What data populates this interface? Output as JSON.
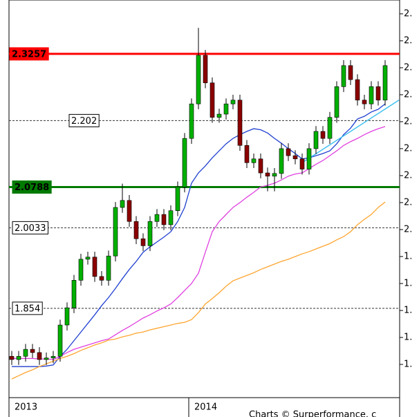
{
  "chart_data": {
    "type": "candlestick",
    "categories": [
      "2013",
      null,
      null,
      null,
      null,
      null,
      null,
      null,
      null,
      null,
      null,
      null,
      null,
      null,
      null,
      null,
      null,
      null,
      null,
      null,
      null,
      null,
      null,
      null,
      null,
      null,
      "2014",
      null,
      null,
      null,
      null,
      null,
      null,
      null,
      null,
      null,
      null,
      null,
      null,
      null,
      null,
      null,
      null,
      null,
      null,
      null,
      null,
      null,
      null,
      null,
      null,
      null,
      null,
      null,
      null
    ],
    "open": [
      1.765,
      1.759,
      1.765,
      1.778,
      1.772,
      1.759,
      1.762,
      1.765,
      1.823,
      1.855,
      1.906,
      1.945,
      1.949,
      1.913,
      1.906,
      1.951,
      2.041,
      2.054,
      2.015,
      1.983,
      1.97,
      2.015,
      2.028,
      2.009,
      2.035,
      2.079,
      2.169,
      2.233,
      2.323,
      2.272,
      2.208,
      2.214,
      2.233,
      2.24,
      2.156,
      2.124,
      2.131,
      2.105,
      2.099,
      2.104,
      2.15,
      2.137,
      2.131,
      2.112,
      2.15,
      2.182,
      2.169,
      2.208,
      2.265,
      2.304,
      2.278,
      2.24,
      2.233,
      2.265,
      2.24
    ],
    "high": [
      1.775,
      1.775,
      1.788,
      1.788,
      1.782,
      1.772,
      1.775,
      1.833,
      1.865,
      1.916,
      1.955,
      1.959,
      1.959,
      1.923,
      1.961,
      2.051,
      2.085,
      2.064,
      2.025,
      1.993,
      2.025,
      2.038,
      2.038,
      2.045,
      2.089,
      2.179,
      2.243,
      2.374,
      2.333,
      2.282,
      2.224,
      2.243,
      2.25,
      2.25,
      2.166,
      2.141,
      2.141,
      2.115,
      2.114,
      2.16,
      2.16,
      2.147,
      2.141,
      2.16,
      2.192,
      2.192,
      2.218,
      2.275,
      2.314,
      2.314,
      2.288,
      2.25,
      2.275,
      2.275,
      2.314
    ],
    "low": [
      1.749,
      1.749,
      1.755,
      1.762,
      1.749,
      1.749,
      1.752,
      1.755,
      1.813,
      1.845,
      1.896,
      1.935,
      1.903,
      1.896,
      1.896,
      1.941,
      2.031,
      2.005,
      1.973,
      1.96,
      1.96,
      2.005,
      1.999,
      1.999,
      2.025,
      2.069,
      2.159,
      2.223,
      2.262,
      2.198,
      2.198,
      2.204,
      2.223,
      2.146,
      2.114,
      2.114,
      2.095,
      2.071,
      2.071,
      2.094,
      2.127,
      2.121,
      2.102,
      2.102,
      2.14,
      2.159,
      2.159,
      2.198,
      2.255,
      2.268,
      2.23,
      2.223,
      2.223,
      2.23,
      2.23
    ],
    "close": [
      1.759,
      1.765,
      1.778,
      1.772,
      1.759,
      1.762,
      1.765,
      1.823,
      1.855,
      1.906,
      1.945,
      1.949,
      1.913,
      1.906,
      1.951,
      2.041,
      2.054,
      2.015,
      1.983,
      1.97,
      2.015,
      2.028,
      2.009,
      2.035,
      2.079,
      2.169,
      2.233,
      2.323,
      2.272,
      2.208,
      2.214,
      2.233,
      2.24,
      2.156,
      2.124,
      2.131,
      2.105,
      2.099,
      2.104,
      2.15,
      2.137,
      2.131,
      2.112,
      2.15,
      2.182,
      2.169,
      2.208,
      2.265,
      2.304,
      2.278,
      2.24,
      2.233,
      2.265,
      2.24,
      2.304
    ],
    "up_color": "#00b000",
    "down_color": "#8b0000",
    "moving_averages": [
      {
        "color": "#1f3fd0",
        "values": [
          1.746,
          1.746,
          1.746,
          1.746,
          1.746,
          1.747,
          1.749,
          1.765,
          1.778,
          1.794,
          1.81,
          1.826,
          1.842,
          1.859,
          1.874,
          1.891,
          1.909,
          1.926,
          1.941,
          1.958,
          1.968,
          1.977,
          1.986,
          1.996,
          2.015,
          2.041,
          2.086,
          2.105,
          2.118,
          2.133,
          2.146,
          2.159,
          2.169,
          2.176,
          2.182,
          2.187,
          2.185,
          2.179,
          2.169,
          2.16,
          2.15,
          2.141,
          2.131,
          2.133,
          2.137,
          2.141,
          2.146,
          2.159,
          2.176,
          2.188,
          2.205,
          2.21,
          2.218,
          2.223,
          2.233
        ]
      },
      {
        "color": "#e040e0",
        "values": [
          1.761,
          1.761,
          1.761,
          1.761,
          1.76,
          1.76,
          1.759,
          1.765,
          1.772,
          1.778,
          1.782,
          1.786,
          1.79,
          1.794,
          1.797,
          1.805,
          1.813,
          1.82,
          1.828,
          1.836,
          1.842,
          1.849,
          1.855,
          1.862,
          1.874,
          1.887,
          1.9,
          1.919,
          1.958,
          1.996,
          2.015,
          2.028,
          2.041,
          2.05,
          2.06,
          2.069,
          2.079,
          2.082,
          2.086,
          2.092,
          2.099,
          2.103,
          2.105,
          2.113,
          2.121,
          2.128,
          2.137,
          2.146,
          2.156,
          2.163,
          2.169,
          2.176,
          2.182,
          2.187,
          2.191
        ]
      },
      {
        "color": "#ffa530",
        "values": [
          1.723,
          1.729,
          1.735,
          1.74,
          1.746,
          1.751,
          1.756,
          1.761,
          1.765,
          1.77,
          1.776,
          1.781,
          1.786,
          1.79,
          1.795,
          1.797,
          1.801,
          1.804,
          1.808,
          1.81,
          1.814,
          1.817,
          1.82,
          1.823,
          1.826,
          1.828,
          1.833,
          1.846,
          1.862,
          1.872,
          1.883,
          1.895,
          1.905,
          1.91,
          1.915,
          1.92,
          1.926,
          1.931,
          1.936,
          1.941,
          1.945,
          1.95,
          1.955,
          1.959,
          1.964,
          1.969,
          1.974,
          1.981,
          1.987,
          1.996,
          2.009,
          2.019,
          2.028,
          2.041,
          2.051
        ]
      }
    ],
    "trendline": {
      "color": "#40c0f0",
      "x": [
        42,
        56
      ],
      "values": [
        2.124,
        2.24
      ]
    },
    "levels": [
      {
        "value": 2.3257,
        "color": "#ff0000",
        "style": "solid",
        "label_style": "filled"
      },
      {
        "value": 2.202,
        "color": "#333333",
        "style": "dashed",
        "label_style": "boxed"
      },
      {
        "value": 2.0788,
        "color": "#007a00",
        "style": "solid",
        "label_style": "filled"
      },
      {
        "value": 2.0033,
        "color": "#333333",
        "style": "dashed",
        "label_style": "boxed"
      },
      {
        "value": 1.854,
        "color": "#333333",
        "style": "dashed",
        "label_style": "boxed"
      }
    ],
    "ylim": [
      1.6884,
      2.4256
    ],
    "yticks": [
      {
        "value": 2.4,
        "label": "2."
      },
      {
        "value": 2.35,
        "label": "2."
      },
      {
        "value": 2.3,
        "label": "2."
      },
      {
        "value": 2.25,
        "label": "2."
      },
      {
        "value": 2.2,
        "label": "2."
      },
      {
        "value": 2.15,
        "label": "2."
      },
      {
        "value": 2.1,
        "label": "2."
      },
      {
        "value": 2.05,
        "label": "2."
      },
      {
        "value": 2.0,
        "label": "2."
      },
      {
        "value": 1.95,
        "label": "1."
      },
      {
        "value": 1.9,
        "label": "1."
      },
      {
        "value": 1.85,
        "label": "1."
      },
      {
        "value": 1.8,
        "label": "1."
      },
      {
        "value": 1.75,
        "label": "1."
      }
    ],
    "credit": "Charts © Surperformance. c"
  }
}
